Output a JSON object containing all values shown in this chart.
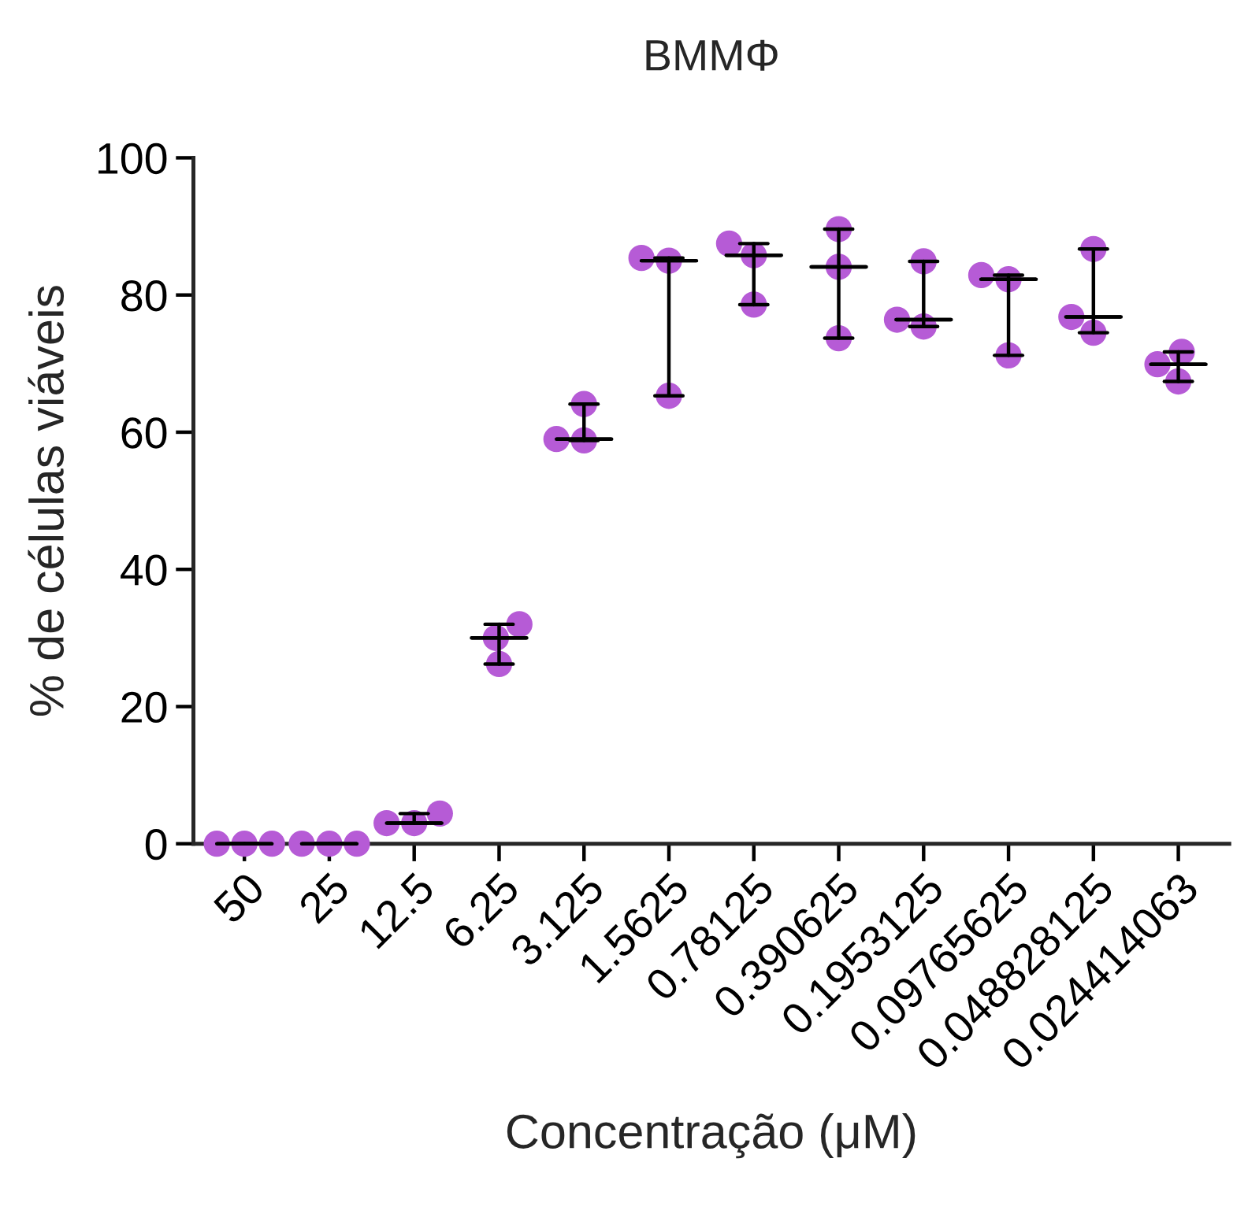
{
  "chart_data": {
    "type": "box",
    "title": "BMMΦ",
    "xlabel": "Concentração (μM)",
    "ylabel": "% de células viáveis",
    "categories": [
      "50",
      "25",
      "12.5",
      "6.25",
      "3.125",
      "1.5625",
      "0.78125",
      "0.390625",
      "0.1953125",
      "0.09765625",
      "0.048828125",
      "0.024414063"
    ],
    "ylim": [
      0,
      100
    ],
    "yticks": [
      0,
      20,
      40,
      60,
      80,
      100
    ],
    "grid": false,
    "legend": false,
    "boxes": [
      {
        "low": 0,
        "q1": 0,
        "median": 0,
        "q3": 0,
        "high": 0
      },
      {
        "low": 0,
        "q1": 0,
        "median": 0,
        "q3": 0,
        "high": 0
      },
      {
        "low": 3.0,
        "q1": 3.0,
        "median": 3.0,
        "q3": 3.0,
        "high": 4.4
      },
      {
        "low": 26.2,
        "q1": 30.0,
        "median": 30.0,
        "q3": 30.0,
        "high": 32.0
      },
      {
        "low": 58.8,
        "q1": 59.0,
        "median": 59.0,
        "q3": 59.0,
        "high": 64.1
      },
      {
        "low": 65.3,
        "q1": 85.0,
        "median": 85.0,
        "q3": 85.0,
        "high": 85.4
      },
      {
        "low": 78.6,
        "q1": 85.8,
        "median": 85.8,
        "q3": 85.8,
        "high": 87.5
      },
      {
        "low": 73.7,
        "q1": 84.1,
        "median": 84.1,
        "q3": 84.1,
        "high": 89.6
      },
      {
        "low": 75.4,
        "q1": 76.4,
        "median": 76.4,
        "q3": 76.4,
        "high": 84.9
      },
      {
        "low": 71.2,
        "q1": 82.3,
        "median": 82.3,
        "q3": 82.3,
        "high": 82.9
      },
      {
        "low": 74.5,
        "q1": 76.8,
        "median": 76.8,
        "q3": 76.8,
        "high": 86.7
      },
      {
        "low": 67.4,
        "q1": 69.9,
        "median": 69.9,
        "q3": 69.9,
        "high": 71.7
      }
    ],
    "series": [
      {
        "type": "scatter",
        "color": "#b65bd6",
        "marker": "circle",
        "x": [
          "50",
          "50",
          "50",
          "25",
          "25",
          "25",
          "12.5",
          "12.5",
          "12.5",
          "6.25",
          "6.25",
          "6.25",
          "3.125",
          "3.125",
          "3.125",
          "1.5625",
          "1.5625",
          "1.5625",
          "0.78125",
          "0.78125",
          "0.78125",
          "0.390625",
          "0.390625",
          "0.390625",
          "0.1953125",
          "0.1953125",
          "0.1953125",
          "0.09765625",
          "0.09765625",
          "0.09765625",
          "0.048828125",
          "0.048828125",
          "0.048828125",
          "0.024414063",
          "0.024414063",
          "0.024414063"
        ],
        "values": [
          0,
          0,
          0,
          0,
          0,
          0,
          3.0,
          4.4,
          3.0,
          26.2,
          30.0,
          32.0,
          58.8,
          64.1,
          59.0,
          85.4,
          65.3,
          85.0,
          87.5,
          78.6,
          85.8,
          89.6,
          84.1,
          73.7,
          75.4,
          84.9,
          76.4,
          82.3,
          71.2,
          82.9,
          74.5,
          86.7,
          76.8,
          67.4,
          71.7,
          69.9
        ]
      }
    ]
  }
}
